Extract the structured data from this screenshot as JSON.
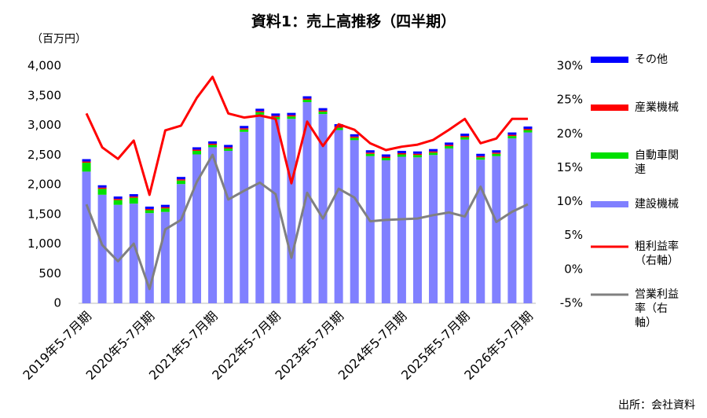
{
  "chart_data": {
    "type": "bar",
    "stacked": true,
    "title": "資料1：売上高推移（四半期）",
    "y_label": "（百万円）",
    "source": "出所：会社資料",
    "categories": [
      "2019年5-7月期",
      null,
      null,
      null,
      "2020年5-7月期",
      null,
      null,
      null,
      "2021年5-7月期",
      null,
      null,
      null,
      "2022年5-7月期",
      null,
      null,
      null,
      "2023年5-7月期",
      null,
      null,
      null,
      "2024年5-7月期",
      null,
      null,
      null,
      "2025年5-7月期",
      null,
      null,
      null,
      "2026年5-7月期"
    ],
    "ylim": [
      0,
      4000
    ],
    "yticks": [
      0,
      500,
      {
        "value": 1000,
        "label": "1,000"
      },
      {
        "value": 1500,
        "label": "1,500"
      },
      {
        "value": 2000,
        "label": "2,000"
      },
      {
        "value": 2500,
        "label": "2,500"
      },
      {
        "value": 3000,
        "label": "3,000"
      },
      {
        "value": 3500,
        "label": "3,500"
      },
      {
        "value": 4000,
        "label": "4,000"
      }
    ],
    "y2lim": [
      -5,
      30
    ],
    "y2ticks": [
      {
        "value": -5,
        "label": "-5%"
      },
      {
        "value": 0,
        "label": "0%"
      },
      {
        "value": 5,
        "label": "5%"
      },
      {
        "value": 10,
        "label": "10%"
      },
      {
        "value": 15,
        "label": "15%"
      },
      {
        "value": 20,
        "label": "20%"
      },
      {
        "value": 25,
        "label": "25%"
      },
      {
        "value": 30,
        "label": "30%"
      }
    ],
    "series": [
      {
        "name": "建設機械",
        "color": "#8080ff",
        "values": [
          2220,
          1830,
          1660,
          1680,
          1520,
          1540,
          2010,
          2510,
          2630,
          2570,
          2890,
          3180,
          3100,
          3110,
          3390,
          3190,
          2920,
          2750,
          2480,
          2410,
          2470,
          2460,
          2500,
          2610,
          2760,
          2420,
          2480,
          2780,
          2880
        ]
      },
      {
        "name": "自動車関連",
        "color": "#00e000",
        "values": [
          150,
          100,
          80,
          100,
          50,
          60,
          60,
          60,
          40,
          40,
          40,
          40,
          40,
          40,
          40,
          40,
          40,
          40,
          40,
          40,
          40,
          40,
          40,
          40,
          40,
          40,
          40,
          40,
          40
        ]
      },
      {
        "name": "産業機械",
        "color": "#ff0000",
        "values": [
          20,
          20,
          20,
          20,
          20,
          20,
          20,
          20,
          20,
          20,
          20,
          20,
          20,
          20,
          20,
          20,
          20,
          20,
          20,
          20,
          20,
          20,
          20,
          20,
          20,
          20,
          20,
          20,
          20
        ]
      },
      {
        "name": "その他",
        "color": "#0000ff",
        "values": [
          40,
          40,
          40,
          40,
          40,
          40,
          40,
          40,
          40,
          40,
          40,
          40,
          40,
          40,
          40,
          40,
          40,
          40,
          40,
          40,
          40,
          40,
          40,
          40,
          40,
          40,
          40,
          40,
          40
        ]
      },
      {
        "name": "粗利益率（右軸）",
        "type": "line",
        "axis": "y2",
        "color": "#ff0000",
        "values": [
          23,
          18,
          16.3,
          19,
          11,
          20.5,
          21.2,
          25.3,
          28.4,
          23,
          22.4,
          22.7,
          22.2,
          12.7,
          21.8,
          18.2,
          21.4,
          20.6,
          18.6,
          17.6,
          18.1,
          18.4,
          19.1,
          20.6,
          22.2,
          18.6,
          19.3,
          22.2,
          22.2
        ]
      },
      {
        "name": "営業利益率（右軸）",
        "type": "line",
        "axis": "y2",
        "color": "#808080",
        "values": [
          9.6,
          3.6,
          1.2,
          3.8,
          -2.9,
          5.9,
          7.3,
          12.9,
          16.9,
          10.3,
          11.6,
          12.8,
          11.1,
          1.7,
          11.3,
          7.5,
          11.9,
          10.6,
          7.1,
          7.3,
          7.4,
          7.5,
          8,
          8.4,
          7.8,
          12.2,
          7,
          8.5,
          9.6
        ]
      }
    ]
  }
}
